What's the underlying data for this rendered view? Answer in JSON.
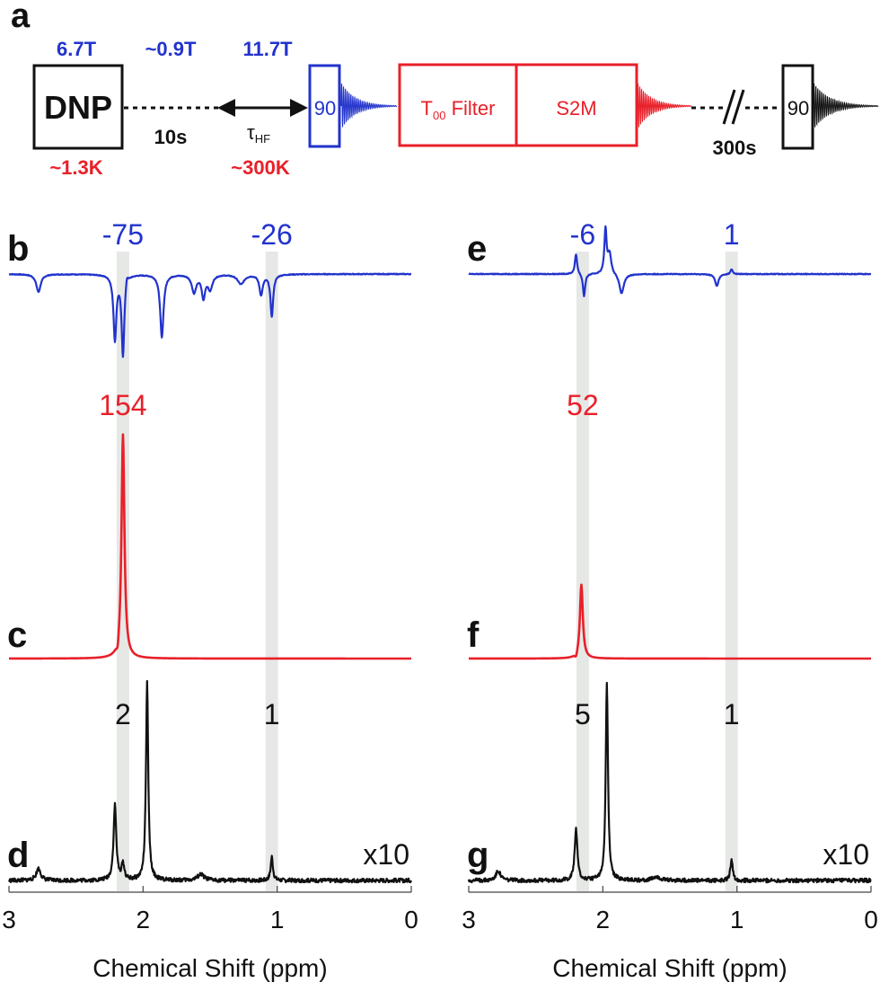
{
  "colors": {
    "blue": "#2233cc",
    "red": "#e8202a",
    "black": "#111111",
    "band": "#e6e8e6"
  },
  "panel_labels": {
    "a": "a",
    "b": "b",
    "c": "c",
    "d": "d",
    "e": "e",
    "f": "f",
    "g": "g"
  },
  "sequence": {
    "field_dnp": "6.7T",
    "field_transfer": "~0.9T",
    "field_hf": "11.7T",
    "dnp_label": "DNP",
    "transfer_time": "10s",
    "tau": "τ",
    "tau_sub": "HF",
    "temp_dnp": "~1.3K",
    "temp_hf": "~300K",
    "pulse_1": "90",
    "filter_main": "T",
    "filter_sub": "00",
    "filter_rest": " Filter",
    "s2m_label": "S2M",
    "wait_time": "300s",
    "pulse_2": "90"
  },
  "chart_data": [
    {
      "panel": "b",
      "type": "line",
      "peak_labels": [
        "-75",
        "-26"
      ],
      "peak_positions_ppm": [
        2.15,
        1.04
      ],
      "peaks": [
        {
          "ppm": 2.78,
          "amp": -0.22,
          "w": 0.02
        },
        {
          "ppm": 2.21,
          "amp": -0.8,
          "w": 0.013
        },
        {
          "ppm": 2.15,
          "amp": -1.0,
          "w": 0.012
        },
        {
          "ppm": 2.12,
          "amp": 0.1,
          "w": 0.01
        },
        {
          "ppm": 1.86,
          "amp": -0.78,
          "w": 0.015
        },
        {
          "ppm": 1.62,
          "amp": -0.22,
          "w": 0.02
        },
        {
          "ppm": 1.55,
          "amp": -0.28,
          "w": 0.015
        },
        {
          "ppm": 1.5,
          "amp": -0.18,
          "w": 0.02
        },
        {
          "ppm": 1.27,
          "amp": -0.12,
          "w": 0.03
        },
        {
          "ppm": 1.12,
          "amp": -0.25,
          "w": 0.015
        },
        {
          "ppm": 1.04,
          "amp": -0.52,
          "w": 0.012
        }
      ]
    },
    {
      "panel": "c",
      "type": "line",
      "peak_labels": [
        "154"
      ],
      "peak_positions_ppm": [
        2.15
      ],
      "peaks": [
        {
          "ppm": 2.15,
          "amp": 1.0,
          "w": 0.013
        },
        {
          "ppm": 2.19,
          "amp": -0.04,
          "w": 0.01
        }
      ]
    },
    {
      "panel": "d",
      "type": "line",
      "peak_labels": [
        "2",
        "1"
      ],
      "peak_positions_ppm": [
        2.15,
        1.04
      ],
      "scale_label": "x10",
      "xlim": [
        3,
        0
      ],
      "x_ticks": [
        "3",
        "2",
        "1",
        "0"
      ],
      "xlabel": "Chemical Shift (ppm)",
      "peaks": [
        {
          "ppm": 2.78,
          "amp": 0.06,
          "w": 0.02
        },
        {
          "ppm": 2.21,
          "amp": 0.38,
          "w": 0.012
        },
        {
          "ppm": 2.15,
          "amp": 0.08,
          "w": 0.012
        },
        {
          "ppm": 1.97,
          "amp": 1.0,
          "w": 0.01
        },
        {
          "ppm": 1.57,
          "amp": 0.03,
          "w": 0.03
        },
        {
          "ppm": 1.04,
          "amp": 0.12,
          "w": 0.01
        }
      ]
    },
    {
      "panel": "e",
      "type": "line",
      "peak_labels": [
        "-6",
        "1"
      ],
      "peak_positions_ppm": [
        2.15,
        1.04
      ],
      "peaks": [
        {
          "ppm": 2.2,
          "amp": 0.25,
          "w": 0.01
        },
        {
          "ppm": 2.14,
          "amp": -0.28,
          "w": 0.01
        },
        {
          "ppm": 1.98,
          "amp": 0.55,
          "w": 0.01
        },
        {
          "ppm": 1.95,
          "amp": 0.25,
          "w": 0.015
        },
        {
          "ppm": 1.86,
          "amp": -0.25,
          "w": 0.02
        },
        {
          "ppm": 1.15,
          "amp": -0.15,
          "w": 0.015
        },
        {
          "ppm": 1.04,
          "amp": 0.06,
          "w": 0.01
        }
      ]
    },
    {
      "panel": "f",
      "type": "line",
      "peak_labels": [
        "52"
      ],
      "peak_positions_ppm": [
        2.15
      ],
      "peaks": [
        {
          "ppm": 2.16,
          "amp": 0.33,
          "w": 0.013
        },
        {
          "ppm": 2.2,
          "amp": -0.02,
          "w": 0.01
        }
      ]
    },
    {
      "panel": "g",
      "type": "line",
      "peak_labels": [
        "5",
        "1"
      ],
      "peak_positions_ppm": [
        2.15,
        1.04
      ],
      "scale_label": "x10",
      "xlim": [
        3,
        0
      ],
      "x_ticks": [
        "3",
        "2",
        "1",
        "0"
      ],
      "xlabel": "Chemical Shift (ppm)",
      "peaks": [
        {
          "ppm": 2.78,
          "amp": 0.05,
          "w": 0.02
        },
        {
          "ppm": 2.2,
          "amp": 0.26,
          "w": 0.012
        },
        {
          "ppm": 1.97,
          "amp": 1.0,
          "w": 0.01
        },
        {
          "ppm": 1.6,
          "amp": 0.02,
          "w": 0.03
        },
        {
          "ppm": 1.04,
          "amp": 0.11,
          "w": 0.01
        }
      ]
    }
  ]
}
